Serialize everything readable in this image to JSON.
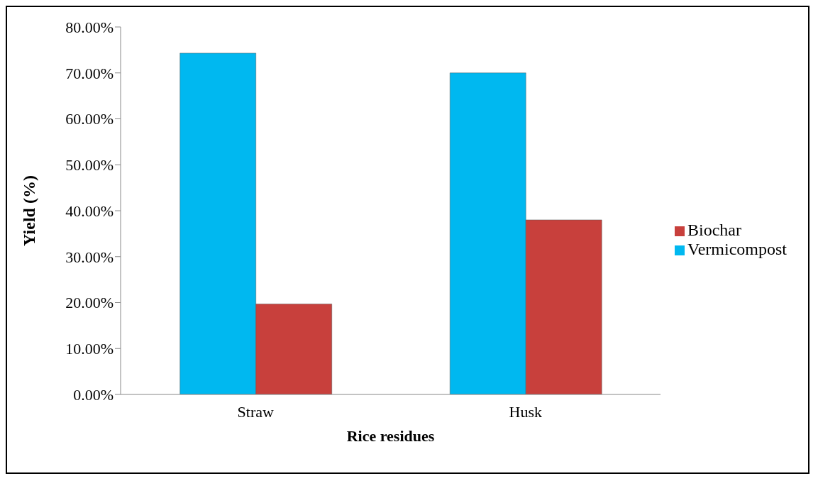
{
  "chart_data": {
    "type": "bar",
    "xlabel": "Rice residues",
    "ylabel": "Yield (%)",
    "categories": [
      "Straw",
      "Husk"
    ],
    "series": [
      {
        "name": "Vermicompost",
        "color": "#00b8f0",
        "values": [
          74.3,
          70.0
        ]
      },
      {
        "name": "Biochar",
        "color": "#c8403c",
        "values": [
          19.7,
          38.0
        ]
      }
    ],
    "ylim": [
      0,
      80
    ],
    "yticks": [
      {
        "value": 0,
        "label": "0.00%"
      },
      {
        "value": 10,
        "label": "10.00%"
      },
      {
        "value": 20,
        "label": "20.00%"
      },
      {
        "value": 30,
        "label": "30.00%"
      },
      {
        "value": 40,
        "label": "40.00%"
      },
      {
        "value": 50,
        "label": "50.00%"
      },
      {
        "value": 60,
        "label": "60.00%"
      },
      {
        "value": 70,
        "label": "70.00%"
      },
      {
        "value": 80,
        "label": "80.00%"
      }
    ],
    "grid": false,
    "legend": "right"
  }
}
